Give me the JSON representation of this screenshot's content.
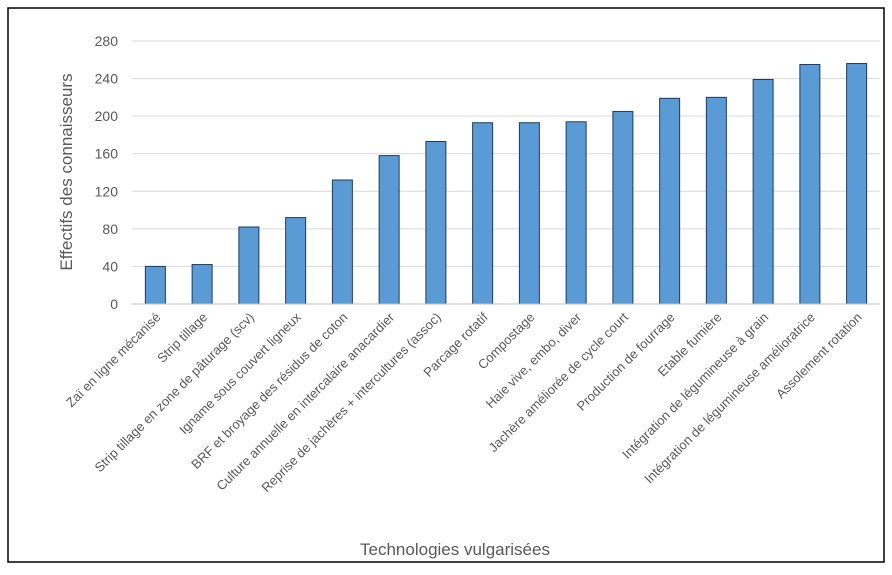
{
  "chart_data": {
    "type": "bar",
    "x_label": "Technologies vulgarisées",
    "y_label": "Effectifs des connaisseurs",
    "categories": [
      "Zaï en ligne mécanisé",
      "Strip tillage",
      "Strip tillage en zone de pâturage (scv)",
      "Igname sous couvert ligneux",
      "BRF et broyage des résidus de coton",
      "Culture annuelle en intercalaire anacardier",
      "Reprise de jachères + intercultures (assoc)",
      "Parcage rotatif",
      "Compostage",
      "Haie vive, embo, diver",
      "Jachère améliorée de cycle court",
      "Production de fourrage",
      "Etable fumière",
      "Intégration de légumineuse à grain",
      "Intégration de légumineuse amélioratrice",
      "Assolement rotation"
    ],
    "values": [
      40,
      42,
      82,
      92,
      132,
      158,
      173,
      193,
      193,
      194,
      205,
      219,
      220,
      239,
      255,
      256
    ],
    "color": "#5b9bd5",
    "ylim": [
      0,
      280
    ],
    "yticks": [
      0,
      40,
      80,
      120,
      160,
      200,
      240,
      280
    ],
    "grid": true
  }
}
